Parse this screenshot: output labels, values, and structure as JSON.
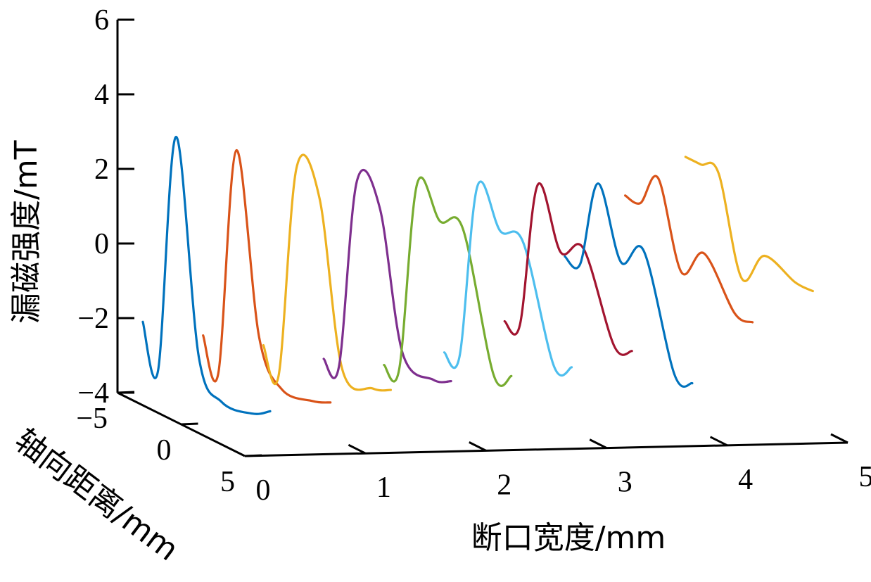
{
  "chart_data": {
    "type": "line",
    "projection": "3d",
    "title": "",
    "zlabel": "漏磁强度/mT",
    "xlabel": "断口宽度/mm",
    "ylabel": "轴向距离/mm",
    "zlim": [
      -4,
      6
    ],
    "xlim": [
      0,
      5
    ],
    "ylim": [
      -5,
      5
    ],
    "z_ticks": [
      6,
      4,
      2,
      0,
      -2,
      -4
    ],
    "z_tick_labels": [
      "6",
      "4",
      "2",
      "0",
      "−2",
      "−4"
    ],
    "x_ticks": [
      0,
      1,
      2,
      3,
      4,
      5
    ],
    "x_tick_labels": [
      "0",
      "1",
      "2",
      "3",
      "4",
      "5"
    ],
    "y_ticks": [
      -5,
      0,
      5
    ],
    "y_tick_labels": [
      "−5",
      "0",
      "5"
    ],
    "grid": false,
    "legend": "none",
    "series": [
      {
        "color": "#0072BD",
        "width": 0.5,
        "z": [
          -2.1,
          -3.2,
          3.3,
          -2.3,
          -3.2,
          -3.1,
          -2.8
        ]
      },
      {
        "color": "#D95319",
        "width": 1.0,
        "z": [
          -2.5,
          -3.3,
          2.9,
          -1.8,
          -2.9,
          -2.8,
          -2.6
        ]
      },
      {
        "color": "#EDB120",
        "width": 1.5,
        "z": [
          -2.8,
          -3.4,
          2.4,
          1.9,
          -2.4,
          -2.5,
          -2.3
        ]
      },
      {
        "color": "#7E2F8E",
        "width": 2.0,
        "z": [
          -3.2,
          -3.2,
          2.0,
          1.6,
          -2.0,
          -2.3,
          -2.1
        ]
      },
      {
        "color": "#77AC30",
        "width": 2.5,
        "z": [
          -3.4,
          -3.3,
          1.9,
          1.2,
          1.3,
          -2.2,
          -2.0
        ]
      },
      {
        "color": "#4DBEEE",
        "width": 3.0,
        "z": [
          -3.1,
          -3.0,
          1.8,
          0.9,
          0.9,
          -2.0,
          -1.8
        ]
      },
      {
        "color": "#A2142F",
        "width": 3.5,
        "z": [
          -2.3,
          -2.2,
          1.8,
          0.3,
          0.7,
          -1.5,
          -1.4
        ]
      },
      {
        "color": "#0072BD",
        "width": 4.0,
        "z": [
          -0.6,
          -0.6,
          1.8,
          0.0,
          0.6,
          -2.3,
          -2.3
        ]
      },
      {
        "color": "#D95319",
        "width": 4.5,
        "z": [
          1.0,
          1.0,
          1.9,
          -0.3,
          0.5,
          -0.7,
          -0.7
        ]
      },
      {
        "color": "#EDB120",
        "width": 5.0,
        "z": [
          2.0,
          2.0,
          2.0,
          -0.5,
          0.4,
          0.1,
          0.1
        ]
      }
    ]
  }
}
